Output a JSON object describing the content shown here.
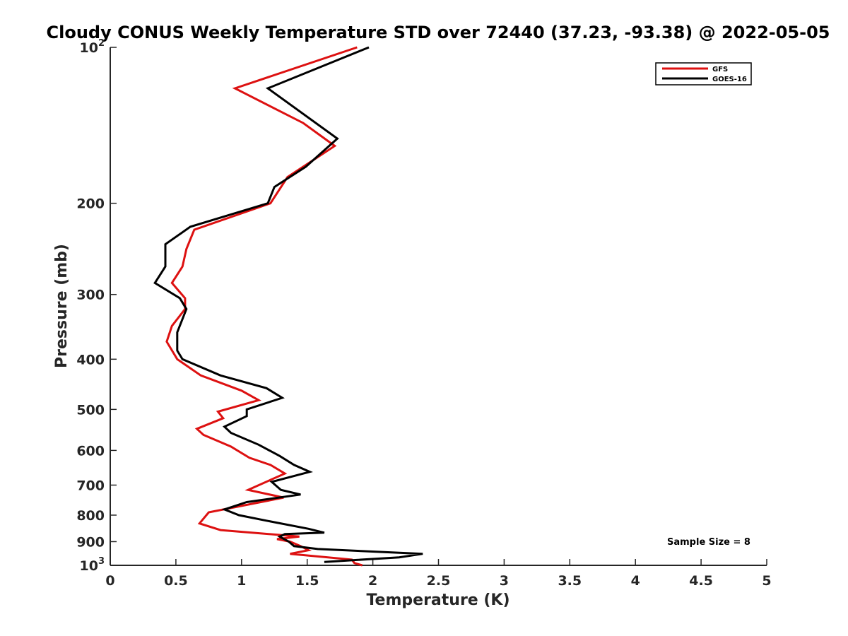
{
  "chart_data": {
    "type": "line",
    "title": "Cloudy CONUS Weekly Temperature STD over 72440 (37.23, -93.38) @ 2022-05-05",
    "xlabel": "Temperature (K)",
    "ylabel": "Pressure (mb)",
    "xlim": [
      0,
      5
    ],
    "ylim": [
      100,
      1000
    ],
    "y_scale": "log",
    "y_reversed": true,
    "x_ticks": [
      "0",
      "0.5",
      "1",
      "1.5",
      "2",
      "2.5",
      "3",
      "3.5",
      "4",
      "4.5",
      "5"
    ],
    "y_ticks": [
      {
        "value": 100,
        "label": "10",
        "exp": "2"
      },
      {
        "value": 200,
        "label": "200",
        "exp": ""
      },
      {
        "value": 300,
        "label": "300",
        "exp": ""
      },
      {
        "value": 400,
        "label": "400",
        "exp": ""
      },
      {
        "value": 500,
        "label": "500",
        "exp": ""
      },
      {
        "value": 600,
        "label": "600",
        "exp": ""
      },
      {
        "value": 700,
        "label": "700",
        "exp": ""
      },
      {
        "value": 800,
        "label": "800",
        "exp": ""
      },
      {
        "value": 900,
        "label": "900",
        "exp": ""
      },
      {
        "value": 1000,
        "label": "10",
        "exp": "3"
      }
    ],
    "grid": false,
    "legend_position": "top-right",
    "annotation": "Sample Size = 8",
    "series": [
      {
        "name": "GFS",
        "color": "#dd1111",
        "points": [
          [
            1.88,
            100
          ],
          [
            0.95,
            120
          ],
          [
            1.47,
            140
          ],
          [
            1.71,
            155
          ],
          [
            1.35,
            178
          ],
          [
            1.22,
            200
          ],
          [
            0.64,
            225
          ],
          [
            0.58,
            245
          ],
          [
            0.55,
            265
          ],
          [
            0.47,
            285
          ],
          [
            0.57,
            305
          ],
          [
            0.57,
            320
          ],
          [
            0.47,
            345
          ],
          [
            0.43,
            370
          ],
          [
            0.51,
            400
          ],
          [
            0.69,
            430
          ],
          [
            1.0,
            460
          ],
          [
            1.13,
            480
          ],
          [
            0.82,
            505
          ],
          [
            0.86,
            520
          ],
          [
            0.66,
            545
          ],
          [
            0.71,
            560
          ],
          [
            0.92,
            590
          ],
          [
            1.06,
            620
          ],
          [
            1.22,
            640
          ],
          [
            1.33,
            665
          ],
          [
            1.05,
            715
          ],
          [
            1.32,
            740
          ],
          [
            0.75,
            790
          ],
          [
            0.68,
            830
          ],
          [
            0.84,
            855
          ],
          [
            1.44,
            880
          ],
          [
            1.27,
            890
          ],
          [
            1.37,
            900
          ],
          [
            1.45,
            918
          ],
          [
            1.51,
            935
          ],
          [
            1.37,
            950
          ],
          [
            1.84,
            975
          ],
          [
            1.86,
            990
          ],
          [
            1.92,
            1000
          ]
        ]
      },
      {
        "name": "GOES-16",
        "color": "#000000",
        "points": [
          [
            1.97,
            100
          ],
          [
            1.2,
            120
          ],
          [
            1.73,
            150
          ],
          [
            1.49,
            170
          ],
          [
            1.25,
            186
          ],
          [
            1.2,
            200
          ],
          [
            0.61,
            222
          ],
          [
            0.42,
            240
          ],
          [
            0.42,
            265
          ],
          [
            0.34,
            285
          ],
          [
            0.53,
            305
          ],
          [
            0.58,
            320
          ],
          [
            0.51,
            355
          ],
          [
            0.51,
            385
          ],
          [
            0.55,
            400
          ],
          [
            0.84,
            430
          ],
          [
            1.19,
            455
          ],
          [
            1.31,
            475
          ],
          [
            1.04,
            500
          ],
          [
            1.04,
            515
          ],
          [
            0.87,
            540
          ],
          [
            0.92,
            555
          ],
          [
            1.13,
            585
          ],
          [
            1.29,
            615
          ],
          [
            1.4,
            640
          ],
          [
            1.52,
            660
          ],
          [
            1.23,
            690
          ],
          [
            1.3,
            715
          ],
          [
            1.45,
            730
          ],
          [
            1.04,
            755
          ],
          [
            0.87,
            780
          ],
          [
            0.98,
            800
          ],
          [
            1.19,
            820
          ],
          [
            1.51,
            850
          ],
          [
            1.63,
            865
          ],
          [
            1.33,
            870
          ],
          [
            1.29,
            880
          ],
          [
            1.36,
            900
          ],
          [
            1.4,
            918
          ],
          [
            1.58,
            930
          ],
          [
            2.38,
            950
          ],
          [
            2.2,
            965
          ],
          [
            1.63,
            985
          ]
        ]
      }
    ]
  }
}
